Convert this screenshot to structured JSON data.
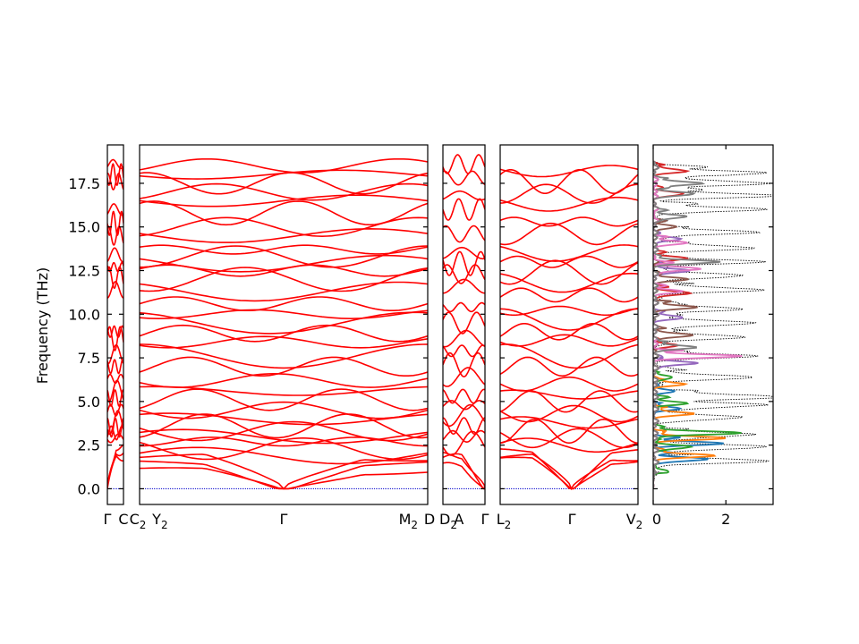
{
  "chart_data": {
    "type": "line",
    "title": "",
    "ylabel": "Frequency (THz)",
    "ylim": [
      -0.9,
      19.7
    ],
    "yticks": [
      "0.0",
      "2.5",
      "5.0",
      "7.5",
      "10.0",
      "12.5",
      "15.0",
      "17.5"
    ],
    "ytick_values": [
      0,
      2.5,
      5,
      7.5,
      10,
      12.5,
      15,
      17.5
    ],
    "band_color": "#ff0000",
    "zero_line_color": "#0000cc",
    "panels": [
      {
        "id": "p1",
        "xticks": [
          "Γ",
          "C"
        ],
        "anchors": [
          0.0,
          2.1,
          2.4,
          2.9,
          3.2,
          3.5,
          3.8,
          4.5,
          5.2,
          5.6,
          6.3,
          7.0,
          7.7,
          8.6,
          9.0,
          11.4,
          12.1,
          12.7,
          13.4,
          14.5,
          15.2,
          16.0,
          17.6,
          18.0,
          18.6
        ]
      },
      {
        "id": "p2",
        "xticks": [
          "C2",
          "Y2",
          "Γ",
          "M2",
          "D"
        ],
        "anchors": [
          0.0,
          1.0,
          1.4,
          1.9,
          2.3,
          2.7,
          3.0,
          3.3,
          3.6,
          4.0,
          4.5,
          5.1,
          5.6,
          6.2,
          7.0,
          7.6,
          8.4,
          8.9,
          9.5,
          10.0,
          10.6,
          11.3,
          12.0,
          12.5,
          12.9,
          13.3,
          13.7,
          14.5,
          15.0,
          15.8,
          16.5,
          17.0,
          17.5,
          18.0,
          18.5
        ]
      },
      {
        "id": "p3",
        "xticks": [
          "D2",
          "A",
          "Γ"
        ],
        "anchors": [
          0.0,
          1.3,
          1.9,
          2.6,
          3.0,
          3.6,
          4.2,
          4.8,
          5.3,
          6.4,
          7.1,
          7.9,
          8.6,
          9.5,
          10.4,
          11.6,
          12.3,
          12.9,
          13.5,
          14.6,
          16.0,
          16.8,
          17.8,
          18.6
        ]
      },
      {
        "id": "p4",
        "xticks": [
          "L2",
          "Γ",
          "V2"
        ],
        "anchors": [
          0.0,
          1.6,
          2.1,
          2.5,
          2.9,
          3.3,
          3.8,
          4.3,
          5.0,
          5.4,
          6.0,
          7.0,
          7.6,
          8.5,
          9.0,
          9.7,
          10.2,
          11.1,
          11.8,
          12.4,
          13.0,
          13.5,
          14.6,
          15.3,
          16.3,
          16.9,
          17.6,
          18.2
        ]
      }
    ],
    "dos": {
      "xticks": [
        "0",
        "2"
      ],
      "xtick_values": [
        0,
        2
      ],
      "xlim": [
        0,
        3.3
      ],
      "total_color": "#000000",
      "peaks": [
        {
          "f": 1.6,
          "v": 2.9
        },
        {
          "f": 2.4,
          "v": 3.0
        },
        {
          "f": 3.1,
          "v": 2.6
        },
        {
          "f": 4.1,
          "v": 2.4
        },
        {
          "f": 4.8,
          "v": 3.0
        },
        {
          "f": 5.3,
          "v": 2.9
        },
        {
          "f": 6.4,
          "v": 2.7
        },
        {
          "f": 7.6,
          "v": 2.5
        },
        {
          "f": 8.7,
          "v": 2.4
        },
        {
          "f": 9.5,
          "v": 2.8
        },
        {
          "f": 10.3,
          "v": 2.4
        },
        {
          "f": 11.4,
          "v": 2.8
        },
        {
          "f": 12.2,
          "v": 2.3
        },
        {
          "f": 13.0,
          "v": 2.7
        },
        {
          "f": 13.8,
          "v": 2.6
        },
        {
          "f": 14.7,
          "v": 2.6
        },
        {
          "f": 16.0,
          "v": 2.8
        },
        {
          "f": 16.8,
          "v": 3.2
        },
        {
          "f": 17.5,
          "v": 3.0
        },
        {
          "f": 18.1,
          "v": 3.0
        }
      ],
      "partials": [
        {
          "color": "#1f77b4",
          "peaks": [
            {
              "f": 1.7,
              "v": 1.5
            },
            {
              "f": 2.6,
              "v": 1.9
            },
            {
              "f": 4.6,
              "v": 0.6
            },
            {
              "f": 5.6,
              "v": 0.5
            }
          ]
        },
        {
          "color": "#ff7f0e",
          "peaks": [
            {
              "f": 1.9,
              "v": 1.7
            },
            {
              "f": 2.9,
              "v": 1.9
            },
            {
              "f": 4.3,
              "v": 1.1
            },
            {
              "f": 6.0,
              "v": 0.8
            }
          ]
        },
        {
          "color": "#2ca02c",
          "peaks": [
            {
              "f": 1.0,
              "v": 0.4
            },
            {
              "f": 2.4,
              "v": 1.0
            },
            {
              "f": 3.2,
              "v": 2.3
            },
            {
              "f": 4.9,
              "v": 0.9
            },
            {
              "f": 6.4,
              "v": 0.5
            }
          ]
        },
        {
          "color": "#d62728",
          "peaks": [
            {
              "f": 8.2,
              "v": 0.6
            },
            {
              "f": 11.2,
              "v": 1.0
            },
            {
              "f": 13.2,
              "v": 0.9
            },
            {
              "f": 16.9,
              "v": 0.8
            },
            {
              "f": 18.2,
              "v": 0.9
            }
          ]
        },
        {
          "color": "#9467bd",
          "peaks": [
            {
              "f": 7.2,
              "v": 1.2
            },
            {
              "f": 9.8,
              "v": 0.8
            },
            {
              "f": 12.5,
              "v": 1.0
            },
            {
              "f": 14.3,
              "v": 0.7
            }
          ]
        },
        {
          "color": "#8c564b",
          "peaks": [
            {
              "f": 8.8,
              "v": 1.1
            },
            {
              "f": 10.4,
              "v": 1.2
            },
            {
              "f": 12.0,
              "v": 0.9
            },
            {
              "f": 15.0,
              "v": 0.6
            }
          ]
        },
        {
          "color": "#e377c2",
          "peaks": [
            {
              "f": 7.6,
              "v": 2.3
            },
            {
              "f": 11.3,
              "v": 0.7
            },
            {
              "f": 12.6,
              "v": 1.3
            },
            {
              "f": 14.1,
              "v": 0.9
            }
          ]
        },
        {
          "color": "#7f7f7f",
          "peaks": [
            {
              "f": 8.1,
              "v": 1.2
            },
            {
              "f": 13.0,
              "v": 1.7
            },
            {
              "f": 15.6,
              "v": 0.9
            },
            {
              "f": 16.9,
              "v": 1.1
            },
            {
              "f": 17.5,
              "v": 1.3
            }
          ]
        }
      ]
    }
  }
}
